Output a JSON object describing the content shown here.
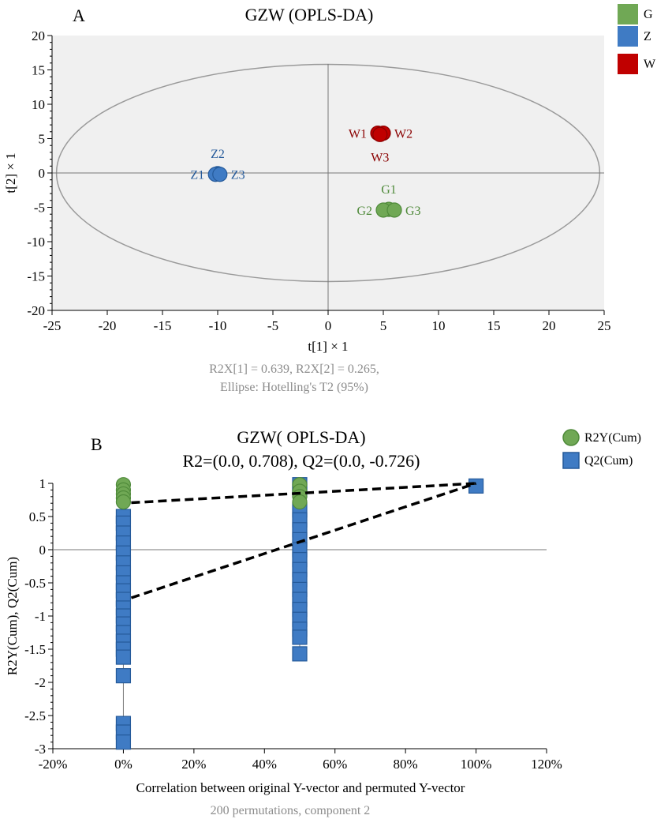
{
  "chart_data": [
    {
      "panel_letter": "A",
      "type": "scatter",
      "title": "GZW (OPLS-DA)",
      "xlabel": "t[1] × 1",
      "ylabel": "t[2] × 1",
      "xlim": [
        -25,
        25
      ],
      "ylim": [
        -20,
        20
      ],
      "xticks": [
        "-25",
        "-20",
        "-15",
        "-10",
        "-5",
        "0",
        "5",
        "10",
        "15",
        "20",
        "25"
      ],
      "yticks": [
        "20",
        "15",
        "10",
        "5",
        "0",
        "-5",
        "-10",
        "-15",
        "-20"
      ],
      "footnote_line1": "R2X[1] = 0.639, R2X[2] = 0.265,",
      "footnote_line2": "Ellipse: Hotelling's T2 (95%)",
      "ellipse": {
        "center": [
          0,
          0
        ],
        "radius_x": 24.6,
        "radius_y": 15.8
      },
      "legend": {
        "placement": "top-right",
        "entries": [
          "G",
          "Z",
          "W"
        ]
      },
      "series": [
        {
          "name": "G",
          "color": "#70a855",
          "stroke": "#4f8a3a",
          "points": [
            {
              "label": "G1",
              "x": 5.5,
              "y": -5.3
            },
            {
              "label": "G2",
              "x": 5.0,
              "y": -5.4
            },
            {
              "label": "G3",
              "x": 6.0,
              "y": -5.4
            }
          ]
        },
        {
          "name": "Z",
          "color": "#3f7bc4",
          "stroke": "#255a9a",
          "points": [
            {
              "label": "Z2",
              "x": -10.0,
              "y": -0.1
            },
            {
              "label": "Z1",
              "x": -10.2,
              "y": -0.2
            },
            {
              "label": "Z3",
              "x": -9.8,
              "y": -0.2
            }
          ]
        },
        {
          "name": "W",
          "color": "#c00000",
          "stroke": "#8a0000",
          "points": [
            {
              "label": "W1",
              "x": 4.5,
              "y": 5.8
            },
            {
              "label": "W2",
              "x": 5.0,
              "y": 5.8
            },
            {
              "label": "W3",
              "x": 4.7,
              "y": 5.6
            }
          ]
        }
      ],
      "colors": {
        "plot_bg": "#f0f0f0",
        "axis_text": "#000000",
        "footnote": "#8c8c8c",
        "ellipse": "#9a9a9a"
      }
    },
    {
      "panel_letter": "B",
      "type": "scatter",
      "title": "GZW( OPLS-DA)",
      "subtitle": "R2=(0.0, 0.708), Q2=(0.0, -0.726)",
      "xlabel": "Correlation between original Y-vector and permuted Y-vector",
      "ylabel": "R2Y(Cum), Q2(Cum)",
      "xlim": [
        -20,
        120
      ],
      "ylim": [
        -3,
        1
      ],
      "xticks": [
        "-20%",
        "0%",
        "20%",
        "40%",
        "60%",
        "80%",
        "100%",
        "120%"
      ],
      "yticks": [
        "1",
        "0.5",
        "0",
        "-0.5",
        "-1",
        "-1.5",
        "-2",
        "-2.5",
        "-3"
      ],
      "footnote": "200 permutations, component 2",
      "legend": {
        "placement": "top-right",
        "entries": [
          "R2Y(Cum)",
          "Q2(Cum)"
        ]
      },
      "series": [
        {
          "name": "R2Y(Cum)",
          "color": "#70a855",
          "stroke": "#4f8a3a",
          "marker": "circle",
          "points": [
            {
              "x": 0,
              "y": 0.98
            },
            {
              "x": 0,
              "y": 0.9
            },
            {
              "x": 0,
              "y": 0.84
            },
            {
              "x": 0,
              "y": 0.78
            },
            {
              "x": 0,
              "y": 0.72
            },
            {
              "x": 50,
              "y": 0.98
            },
            {
              "x": 50,
              "y": 0.88
            },
            {
              "x": 50,
              "y": 0.8
            },
            {
              "x": 50,
              "y": 0.72
            },
            {
              "x": 100,
              "y": 0.98
            }
          ]
        },
        {
          "name": "Q2(Cum)",
          "color": "#3f7bc4",
          "stroke": "#255a9a",
          "marker": "square",
          "points": [
            {
              "x": 0,
              "y": 0.5
            },
            {
              "x": 0,
              "y": 0.4
            },
            {
              "x": 0,
              "y": 0.25
            },
            {
              "x": 0,
              "y": 0.1
            },
            {
              "x": 0,
              "y": -0.05
            },
            {
              "x": 0,
              "y": -0.2
            },
            {
              "x": 0,
              "y": -0.35
            },
            {
              "x": 0,
              "y": -0.5
            },
            {
              "x": 0,
              "y": -0.62
            },
            {
              "x": 0,
              "y": -0.75
            },
            {
              "x": 0,
              "y": -0.88
            },
            {
              "x": 0,
              "y": -1.0
            },
            {
              "x": 0,
              "y": -1.12
            },
            {
              "x": 0,
              "y": -1.25
            },
            {
              "x": 0,
              "y": -1.38
            },
            {
              "x": 0,
              "y": -1.5
            },
            {
              "x": 0,
              "y": -1.62
            },
            {
              "x": 0,
              "y": -1.9
            },
            {
              "x": 0,
              "y": -2.62
            },
            {
              "x": 0,
              "y": -2.75
            },
            {
              "x": 0,
              "y": -2.9
            },
            {
              "x": 50,
              "y": 0.98
            },
            {
              "x": 50,
              "y": 0.9
            },
            {
              "x": 50,
              "y": 0.6
            },
            {
              "x": 50,
              "y": 0.45
            },
            {
              "x": 50,
              "y": 0.3
            },
            {
              "x": 50,
              "y": 0.15
            },
            {
              "x": 50,
              "y": 0.0
            },
            {
              "x": 50,
              "y": -0.15
            },
            {
              "x": 50,
              "y": -0.3
            },
            {
              "x": 50,
              "y": -0.45
            },
            {
              "x": 50,
              "y": -0.6
            },
            {
              "x": 50,
              "y": -0.75
            },
            {
              "x": 50,
              "y": -0.9
            },
            {
              "x": 50,
              "y": -1.05
            },
            {
              "x": 50,
              "y": -1.2
            },
            {
              "x": 50,
              "y": -1.32
            },
            {
              "x": 50,
              "y": -1.57
            },
            {
              "x": 100,
              "y": 0.96
            }
          ]
        }
      ],
      "regression_lines": [
        {
          "name": "R2",
          "intercept": 0.708,
          "x_from": 0,
          "x_to": 100,
          "y_to": 1.0
        },
        {
          "name": "Q2",
          "intercept": -0.726,
          "x_from": 0,
          "x_to": 100,
          "y_to": 1.0
        }
      ],
      "colors": {
        "axis_text": "#000000",
        "footnote": "#8c8c8c",
        "dashed_line": "#000000"
      }
    }
  ]
}
